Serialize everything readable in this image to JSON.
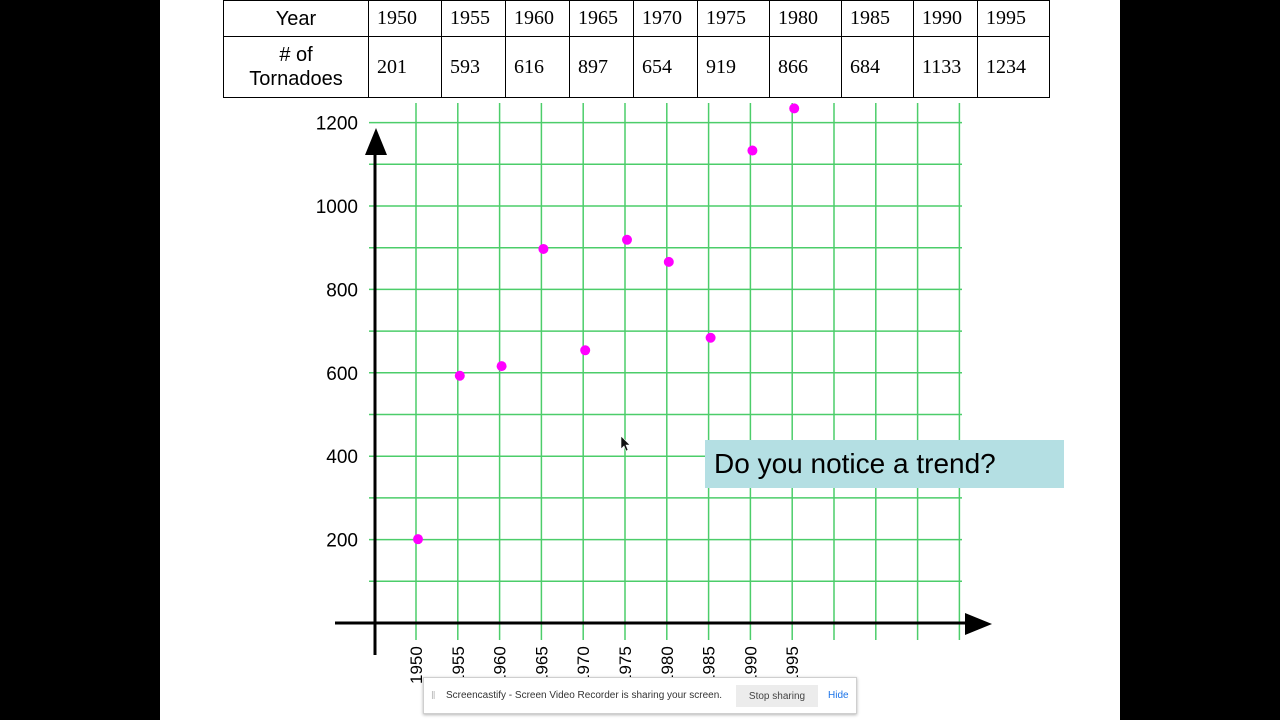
{
  "table": {
    "year_header": "Year",
    "count_header_line1": "# of",
    "count_header_line2": "Tornadoes",
    "years": [
      "1950",
      "1955",
      "1960",
      "1965",
      "1970",
      "1975",
      "1980",
      "1985",
      "1990",
      "1995"
    ],
    "counts": [
      "201",
      "593",
      "616",
      "897",
      "654",
      "919",
      "866",
      "684",
      "1133",
      "1234"
    ]
  },
  "chart_data": {
    "type": "scatter",
    "x_tick_labels": [
      "1950",
      "1955",
      "1960",
      "1965",
      "1970",
      "1975",
      "1980",
      "1985",
      "1990",
      "1995"
    ],
    "y_tick_labels": [
      "200",
      "400",
      "600",
      "800",
      "1000",
      "1200"
    ],
    "ylim": [
      0,
      1200
    ],
    "grid": true,
    "colors": {
      "points": "#ff00ff",
      "grid": "#4ccd6a",
      "axes": "#000000"
    },
    "series": [
      {
        "x": [
          1950,
          1955,
          1960,
          1965,
          1970,
          1975,
          1980,
          1985,
          1990,
          1995
        ],
        "y": [
          201,
          593,
          616,
          897,
          654,
          919,
          866,
          684,
          1133,
          1234
        ]
      }
    ]
  },
  "callout": {
    "text": "Do you notice a trend?"
  },
  "share_bar": {
    "message": "Screencastify - Screen Video Recorder is sharing your screen.",
    "stop_label": "Stop sharing",
    "hide_label": "Hide"
  }
}
